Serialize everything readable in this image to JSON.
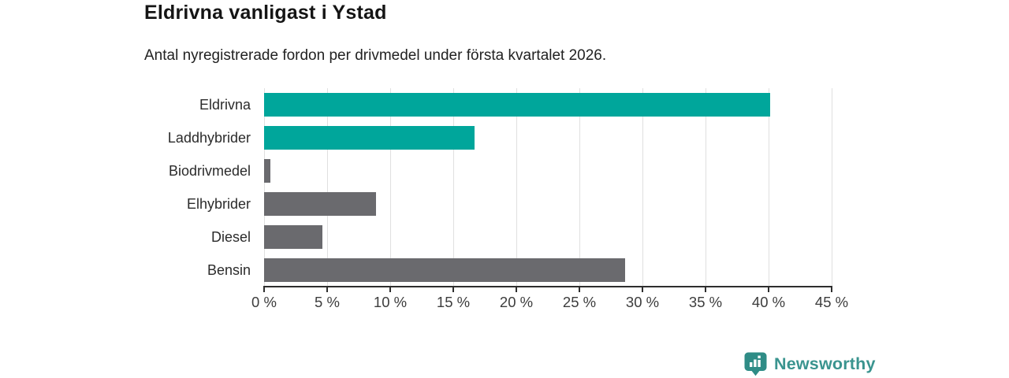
{
  "header": {
    "title": "Eldrivna vanligast i Ystad",
    "subtitle": "Antal nyregistrerade fordon per drivmedel under första kvartalet 2026."
  },
  "chart_data": {
    "type": "bar",
    "orientation": "horizontal",
    "title": "Eldrivna vanligast i Ystad",
    "subtitle": "Antal nyregistrerade fordon per drivmedel under första kvartalet 2026.",
    "categories": [
      "Eldrivna",
      "Laddhybrider",
      "Biodrivmedel",
      "Elhybrider",
      "Diesel",
      "Bensin"
    ],
    "values": [
      40.1,
      16.7,
      0.5,
      8.9,
      4.6,
      28.6
    ],
    "unit": "%",
    "bar_colors": [
      "#00a69b",
      "#00a69b",
      "#6a6a6e",
      "#6a6a6e",
      "#6a6a6e",
      "#6a6a6e"
    ],
    "xlim": [
      0,
      45
    ],
    "x_ticks": [
      0,
      5,
      10,
      15,
      20,
      25,
      30,
      35,
      40,
      45
    ],
    "x_tick_labels": [
      "0 %",
      "5 %",
      "10 %",
      "15 %",
      "20 %",
      "25 %",
      "30 %",
      "35 %",
      "40 %",
      "45 %"
    ],
    "grid": true,
    "legend": false,
    "xlabel": "",
    "ylabel": ""
  },
  "branding": {
    "logo_text": "Newsworthy",
    "logo_text_color": "#3a948f",
    "logo_icon_color": "#2f8c86"
  },
  "colors": {
    "accent_teal": "#00a69b",
    "bar_gray": "#6a6a6e",
    "gridline": "#e0e0e0",
    "axis": "#2e2e2e",
    "background": "#ffffff"
  }
}
